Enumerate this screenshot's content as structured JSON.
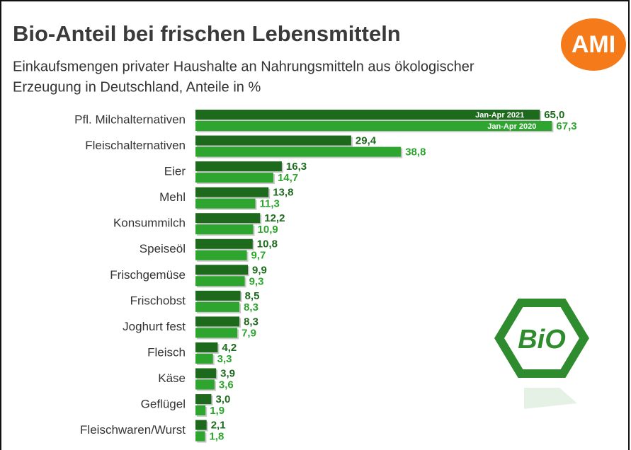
{
  "chart_data": {
    "type": "bar",
    "orientation": "horizontal",
    "title": "Bio-Anteil bei frischen Lebensmitteln",
    "subtitle": [
      "Einkaufsmengen privater Haushalte an Nahrungsmitteln aus ökologischer",
      "Erzeugung in Deutschland, Anteile in %"
    ],
    "logos": [
      "AMI",
      "BiO"
    ],
    "categories": [
      "Pfl. Milchalternativen",
      "Fleischalternativen",
      "Eier",
      "Mehl",
      "Konsummilch",
      "Speiseöl",
      "Frischgemüse",
      "Frischobst",
      "Joghurt fest",
      "Fleisch",
      "Käse",
      "Geflügel",
      "Fleischwaren/Wurst"
    ],
    "series": [
      {
        "name": "Jan-Apr 2021",
        "color": "#1d6a1d",
        "values": [
          65.0,
          29.4,
          16.3,
          13.8,
          12.2,
          10.8,
          9.9,
          8.5,
          8.3,
          4.2,
          3.9,
          3.0,
          2.1
        ],
        "value_labels": [
          "65,0",
          "29,4",
          "16,3",
          "13,8",
          "12,2",
          "10,8",
          "9,9",
          "8,5",
          "8,3",
          "4,2",
          "3,9",
          "3,0",
          "2,1"
        ]
      },
      {
        "name": "Jan-Apr 2020",
        "color": "#2ea52e",
        "values": [
          67.3,
          38.8,
          14.7,
          11.3,
          10.9,
          9.7,
          9.3,
          8.3,
          7.9,
          3.3,
          3.6,
          1.9,
          1.8
        ],
        "value_labels": [
          "67,3",
          "38,8",
          "14,7",
          "11,3",
          "10,9",
          "9,7",
          "9,3",
          "8,3",
          "7,9",
          "3,3",
          "3,6",
          "1,9",
          "1,8"
        ]
      }
    ]
  }
}
